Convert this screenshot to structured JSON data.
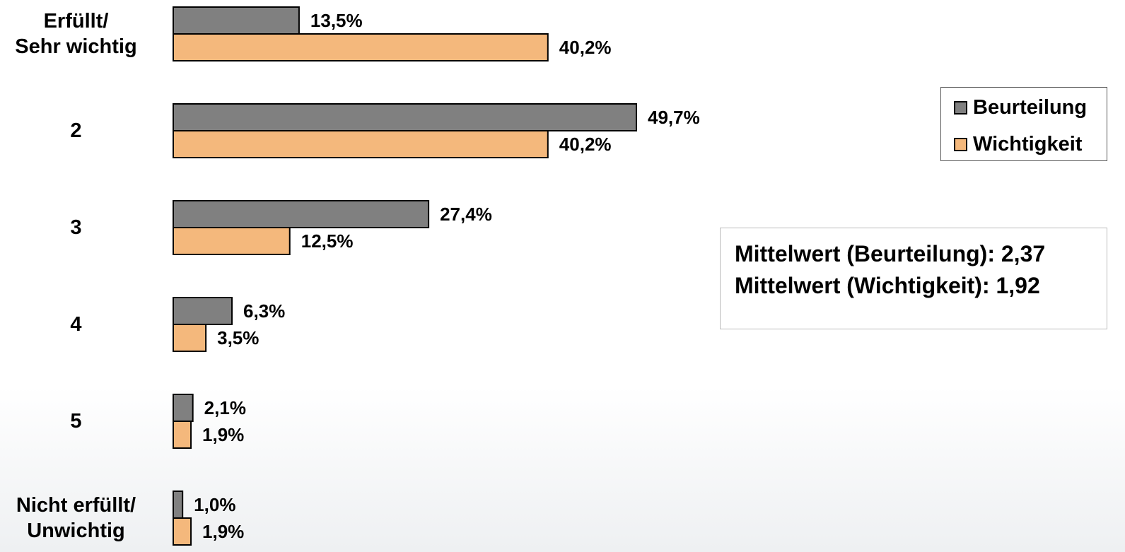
{
  "chart_data": {
    "type": "bar",
    "orientation": "horizontal",
    "categories": [
      "Erfüllt/\nSehr wichtig",
      "2",
      "3",
      "4",
      "5",
      "Nicht erfüllt/\nUnwichtig"
    ],
    "series": [
      {
        "name": "Beurteilung",
        "color": "#808080",
        "values": [
          13.5,
          49.7,
          27.4,
          6.3,
          2.1,
          1.0
        ],
        "value_labels": [
          "13,5%",
          "49,7%",
          "27,4%",
          "6,3%",
          "2,1%",
          "1,0%"
        ]
      },
      {
        "name": "Wichtigkeit",
        "color": "#f4b87c",
        "values": [
          40.2,
          40.2,
          12.5,
          3.5,
          1.9,
          1.9
        ],
        "value_labels": [
          "40,2%",
          "40,2%",
          "12,5%",
          "3,5%",
          "1,9%",
          "1,9%"
        ]
      }
    ],
    "legend": "upper right",
    "annotations": [
      "Mittelwert (Beurteilung): 2,37",
      "Mittelwert (Wichtigkeit): 1,92"
    ]
  }
}
